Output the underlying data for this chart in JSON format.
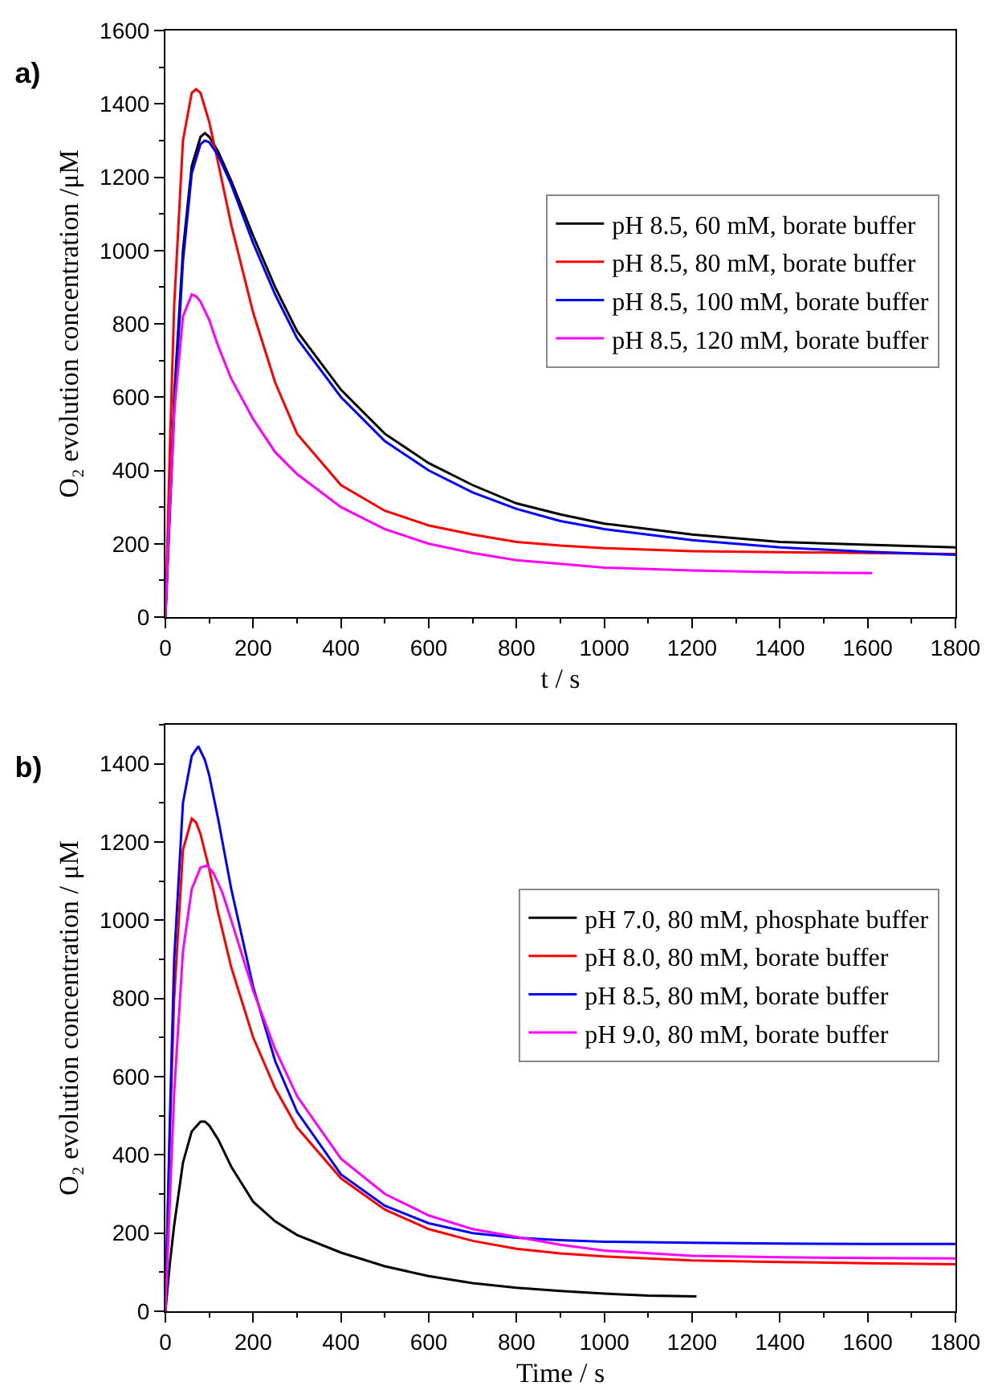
{
  "chart_data": [
    {
      "type": "line",
      "title": "a)",
      "xlabel": "t / s",
      "ylabel": "O₂ evolution concentration /μM",
      "xlim": [
        0,
        1800
      ],
      "ylim": [
        0,
        1600
      ],
      "xticks": [
        0,
        200,
        400,
        600,
        800,
        1000,
        1200,
        1400,
        1600,
        1800
      ],
      "yticks": [
        0,
        200,
        400,
        600,
        800,
        1000,
        1200,
        1400,
        1600
      ],
      "grid": false,
      "legend": "top right",
      "marker": "none",
      "line_style": "solid",
      "series": [
        {
          "name": "pH 8.5, 60 mM, borate buffer",
          "color": "#000000",
          "x": [
            0,
            10,
            20,
            40,
            60,
            80,
            90,
            100,
            120,
            150,
            200,
            250,
            300,
            400,
            500,
            600,
            700,
            800,
            900,
            1000,
            1200,
            1400,
            1600,
            1800
          ],
          "values": [
            0,
            300,
            600,
            1000,
            1230,
            1310,
            1320,
            1310,
            1270,
            1190,
            1040,
            900,
            780,
            620,
            500,
            420,
            360,
            310,
            280,
            255,
            225,
            205,
            197,
            190
          ]
        },
        {
          "name": "pH 8.5, 80 mM, borate buffer",
          "color": "#ff0000",
          "x": [
            0,
            10,
            20,
            40,
            60,
            70,
            80,
            100,
            120,
            150,
            200,
            250,
            300,
            400,
            500,
            600,
            700,
            800,
            900,
            1000,
            1200,
            1400,
            1600,
            1800
          ],
          "values": [
            0,
            450,
            850,
            1300,
            1430,
            1440,
            1430,
            1350,
            1240,
            1070,
            830,
            640,
            500,
            360,
            290,
            250,
            225,
            205,
            195,
            188,
            180,
            177,
            175,
            172
          ]
        },
        {
          "name": "pH 8.5, 100 mM, borate buffer",
          "color": "#0000ff",
          "x": [
            0,
            10,
            20,
            40,
            60,
            80,
            90,
            100,
            120,
            150,
            200,
            250,
            300,
            400,
            500,
            600,
            700,
            800,
            900,
            1000,
            1200,
            1400,
            1600,
            1800
          ],
          "values": [
            0,
            280,
            560,
            970,
            1210,
            1290,
            1300,
            1295,
            1260,
            1180,
            1020,
            880,
            760,
            600,
            480,
            400,
            340,
            295,
            262,
            240,
            210,
            190,
            178,
            170
          ]
        },
        {
          "name": "pH 8.5, 120 mM, borate buffer",
          "color": "#ff00ff",
          "x": [
            0,
            10,
            20,
            40,
            60,
            70,
            80,
            100,
            120,
            150,
            200,
            250,
            300,
            400,
            500,
            600,
            700,
            800,
            900,
            1000,
            1200,
            1400,
            1610
          ],
          "values": [
            0,
            300,
            560,
            820,
            880,
            875,
            860,
            810,
            740,
            650,
            540,
            450,
            390,
            300,
            240,
            200,
            175,
            155,
            145,
            135,
            127,
            122,
            120
          ]
        }
      ]
    },
    {
      "type": "line",
      "title": "b)",
      "xlabel": "Time / s",
      "ylabel": "O₂ evolution concentration / μM",
      "xlim": [
        0,
        1800
      ],
      "ylim": [
        0,
        1500
      ],
      "xticks": [
        0,
        200,
        400,
        600,
        800,
        1000,
        1200,
        1400,
        1600,
        1800
      ],
      "yticks": [
        0,
        200,
        400,
        600,
        800,
        1000,
        1200,
        1400
      ],
      "grid": false,
      "legend": "top right",
      "marker": "none",
      "line_style": "solid",
      "series": [
        {
          "name": "pH 7.0, 80 mM, phosphate buffer",
          "color": "#000000",
          "x": [
            0,
            10,
            20,
            40,
            60,
            80,
            90,
            100,
            120,
            150,
            200,
            250,
            300,
            400,
            500,
            600,
            700,
            800,
            900,
            1000,
            1100,
            1210
          ],
          "values": [
            0,
            120,
            220,
            380,
            460,
            485,
            485,
            475,
            440,
            370,
            280,
            230,
            195,
            150,
            115,
            90,
            72,
            60,
            52,
            45,
            40,
            38
          ]
        },
        {
          "name": "pH 8.0, 80 mM, borate buffer",
          "color": "#ff0000",
          "x": [
            0,
            10,
            20,
            40,
            60,
            70,
            80,
            100,
            120,
            150,
            200,
            250,
            300,
            400,
            500,
            600,
            700,
            800,
            900,
            1000,
            1200,
            1400,
            1600,
            1800
          ],
          "values": [
            0,
            450,
            800,
            1180,
            1260,
            1250,
            1220,
            1130,
            1020,
            880,
            700,
            570,
            470,
            340,
            260,
            210,
            180,
            160,
            148,
            140,
            130,
            126,
            123,
            120
          ]
        },
        {
          "name": "pH 8.5, 80 mM, borate buffer",
          "color": "#0000ff",
          "x": [
            0,
            10,
            20,
            40,
            60,
            75,
            90,
            100,
            120,
            150,
            200,
            250,
            300,
            400,
            500,
            600,
            700,
            800,
            900,
            1000,
            1200,
            1400,
            1600,
            1800
          ],
          "values": [
            0,
            480,
            900,
            1300,
            1420,
            1445,
            1410,
            1370,
            1260,
            1080,
            830,
            640,
            510,
            350,
            270,
            225,
            200,
            188,
            182,
            178,
            175,
            173,
            172,
            172
          ]
        },
        {
          "name": "pH 9.0, 80 mM, borate buffer",
          "color": "#ff00ff",
          "x": [
            0,
            10,
            20,
            40,
            60,
            80,
            95,
            110,
            130,
            150,
            200,
            250,
            300,
            400,
            500,
            600,
            700,
            800,
            900,
            1000,
            1200,
            1400,
            1600,
            1800
          ],
          "values": [
            0,
            280,
            560,
            920,
            1080,
            1135,
            1140,
            1120,
            1070,
            1000,
            820,
            670,
            550,
            390,
            300,
            245,
            210,
            190,
            170,
            155,
            142,
            138,
            136,
            135
          ]
        }
      ]
    }
  ]
}
